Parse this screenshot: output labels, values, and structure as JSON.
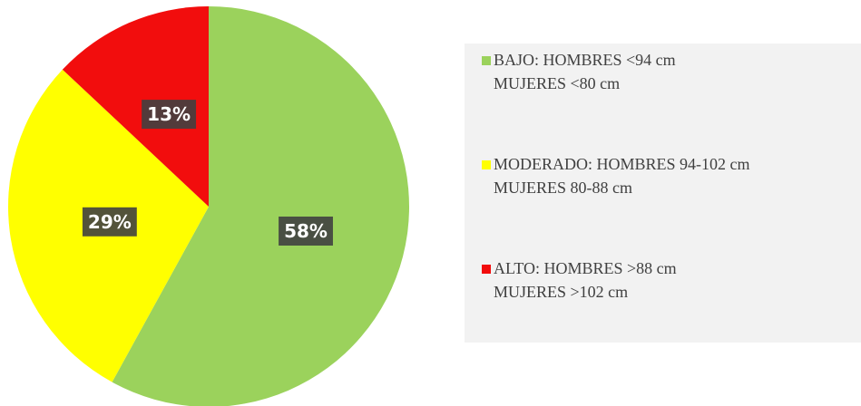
{
  "chart_data": {
    "type": "pie",
    "categories": [
      "BAJO: HOMBRES <94 cm\nMUJERES <80 cm",
      "MODERADO: HOMBRES 94-102 cm\nMUJERES 80-88 cm",
      "ALTO: HOMBRES >88 cm\nMUJERES >102 cm"
    ],
    "values": [
      58,
      29,
      13
    ],
    "value_labels": [
      "58%",
      "29%",
      "13%"
    ],
    "colors": [
      "#9bd25c",
      "#ffff00",
      "#f20d0d"
    ],
    "legend": "right"
  }
}
